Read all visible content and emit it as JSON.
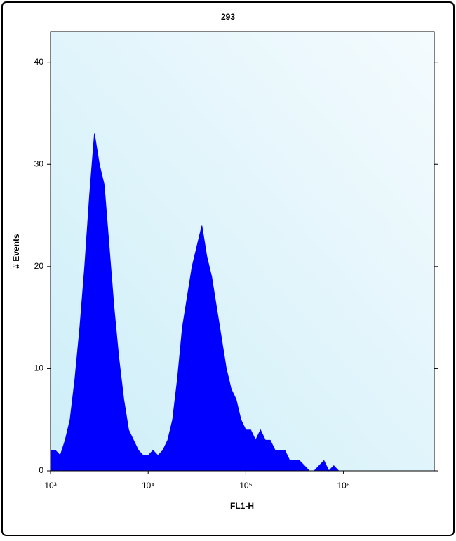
{
  "chart_data": {
    "type": "area",
    "title": "293",
    "x_label": "FL1-H",
    "y_label": "# Events",
    "x": [
      1000,
      1122,
      1259,
      1413,
      1585,
      1778,
      1995,
      2239,
      2512,
      2818,
      3162,
      3548,
      3981,
      4467,
      5012,
      5623,
      6310,
      7079,
      7943,
      8913,
      10000,
      11220,
      12590,
      14130,
      15850,
      17780,
      19950,
      22390,
      25120,
      28180,
      31620,
      35480,
      39810,
      44670,
      50120,
      56230,
      63100,
      70790,
      79430,
      89130,
      100000,
      112200,
      125900,
      141300,
      158500,
      177800,
      199500,
      223900,
      251200,
      281800,
      316200,
      354800,
      398100,
      446700,
      501200,
      562300,
      631000,
      707900,
      794300,
      891300,
      1000000
    ],
    "values": [
      2,
      2,
      1.5,
      3,
      5,
      9,
      14,
      20,
      27,
      33,
      30,
      28,
      22,
      16,
      11,
      7,
      4,
      3,
      2,
      1.5,
      1.5,
      2,
      1.5,
      2,
      3,
      5,
      9,
      14,
      17,
      20,
      22,
      24,
      21,
      19,
      16,
      13,
      10,
      8,
      7,
      5,
      4,
      4,
      3,
      4,
      3,
      3,
      2,
      2,
      2,
      1,
      1,
      1,
      0.5,
      0,
      0,
      0.5,
      1,
      0,
      0.5,
      0,
      0
    ],
    "color": "#0000ff",
    "x_log": true,
    "xlim": [
      1000,
      8500000
    ],
    "xticks": [
      {
        "value": 1000,
        "label": "10³"
      },
      {
        "value": 10000,
        "label": "10⁴"
      },
      {
        "value": 100000,
        "label": "10⁵"
      },
      {
        "value": 1000000,
        "label": "10⁶"
      }
    ],
    "ylim": [
      0,
      43
    ],
    "yticks": [
      0,
      10,
      20,
      30,
      40
    ]
  }
}
